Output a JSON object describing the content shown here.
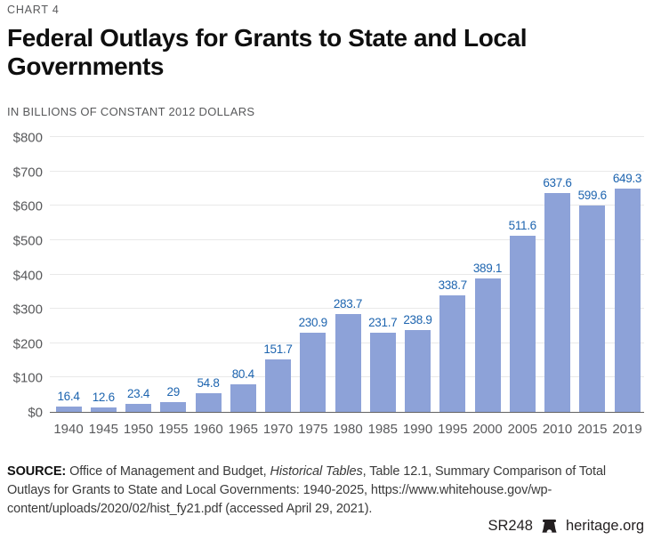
{
  "page": {
    "chart_number": "CHART 4",
    "title": "Federal Outlays for Grants to State and Local Governments",
    "subtitle": "IN BILLIONS OF CONSTANT 2012 DOLLARS"
  },
  "chart_data": {
    "type": "bar",
    "title": "Federal Outlays for Grants to State and Local Governments",
    "subtitle": "IN BILLIONS OF CONSTANT 2012 DOLLARS",
    "xlabel": "",
    "ylabel": "Billions of constant 2012 dollars",
    "categories": [
      "1940",
      "1945",
      "1950",
      "1955",
      "1960",
      "1965",
      "1970",
      "1975",
      "1980",
      "1985",
      "1990",
      "1995",
      "2000",
      "2005",
      "2010",
      "2015",
      "2019"
    ],
    "values": [
      16.4,
      12.6,
      23.4,
      29,
      54.8,
      80.4,
      151.7,
      230.9,
      283.7,
      231.7,
      238.9,
      338.7,
      389.1,
      511.6,
      637.6,
      599.6,
      649.3
    ],
    "value_labels": [
      "16.4",
      "12.6",
      "23.4",
      "29",
      "54.8",
      "80.4",
      "151.7",
      "230.9",
      "283.7",
      "231.7",
      "238.9",
      "338.7",
      "389.1",
      "511.6",
      "637.6",
      "599.6",
      "649.3"
    ],
    "ylim": [
      0,
      800
    ],
    "ytick_values": [
      0,
      100,
      200,
      300,
      400,
      500,
      600,
      700,
      800
    ],
    "ytick_labels": [
      "$0",
      "$100",
      "$200",
      "$300",
      "$400",
      "$500",
      "$600",
      "$700",
      "$800"
    ],
    "grid": true,
    "legend_position": "none",
    "bar_color": "#8da2d8",
    "value_label_color": "#1d64af"
  },
  "source": {
    "label": "SOURCE:",
    "text_before": " Office of Management and Budget, ",
    "italic": "Historical Tables",
    "text_after": ", Table 12.1, Summary Comparison of Total Outlays for Grants to State and Local Governments: 1940-2025, https://www.whitehouse.gov/wp-content/uploads/2020/02/hist_fy21.pdf (accessed April 29, 2021)."
  },
  "footer": {
    "report_id": "SR248",
    "brand": "heritage.org",
    "logo": "liberty-bell-icon"
  }
}
